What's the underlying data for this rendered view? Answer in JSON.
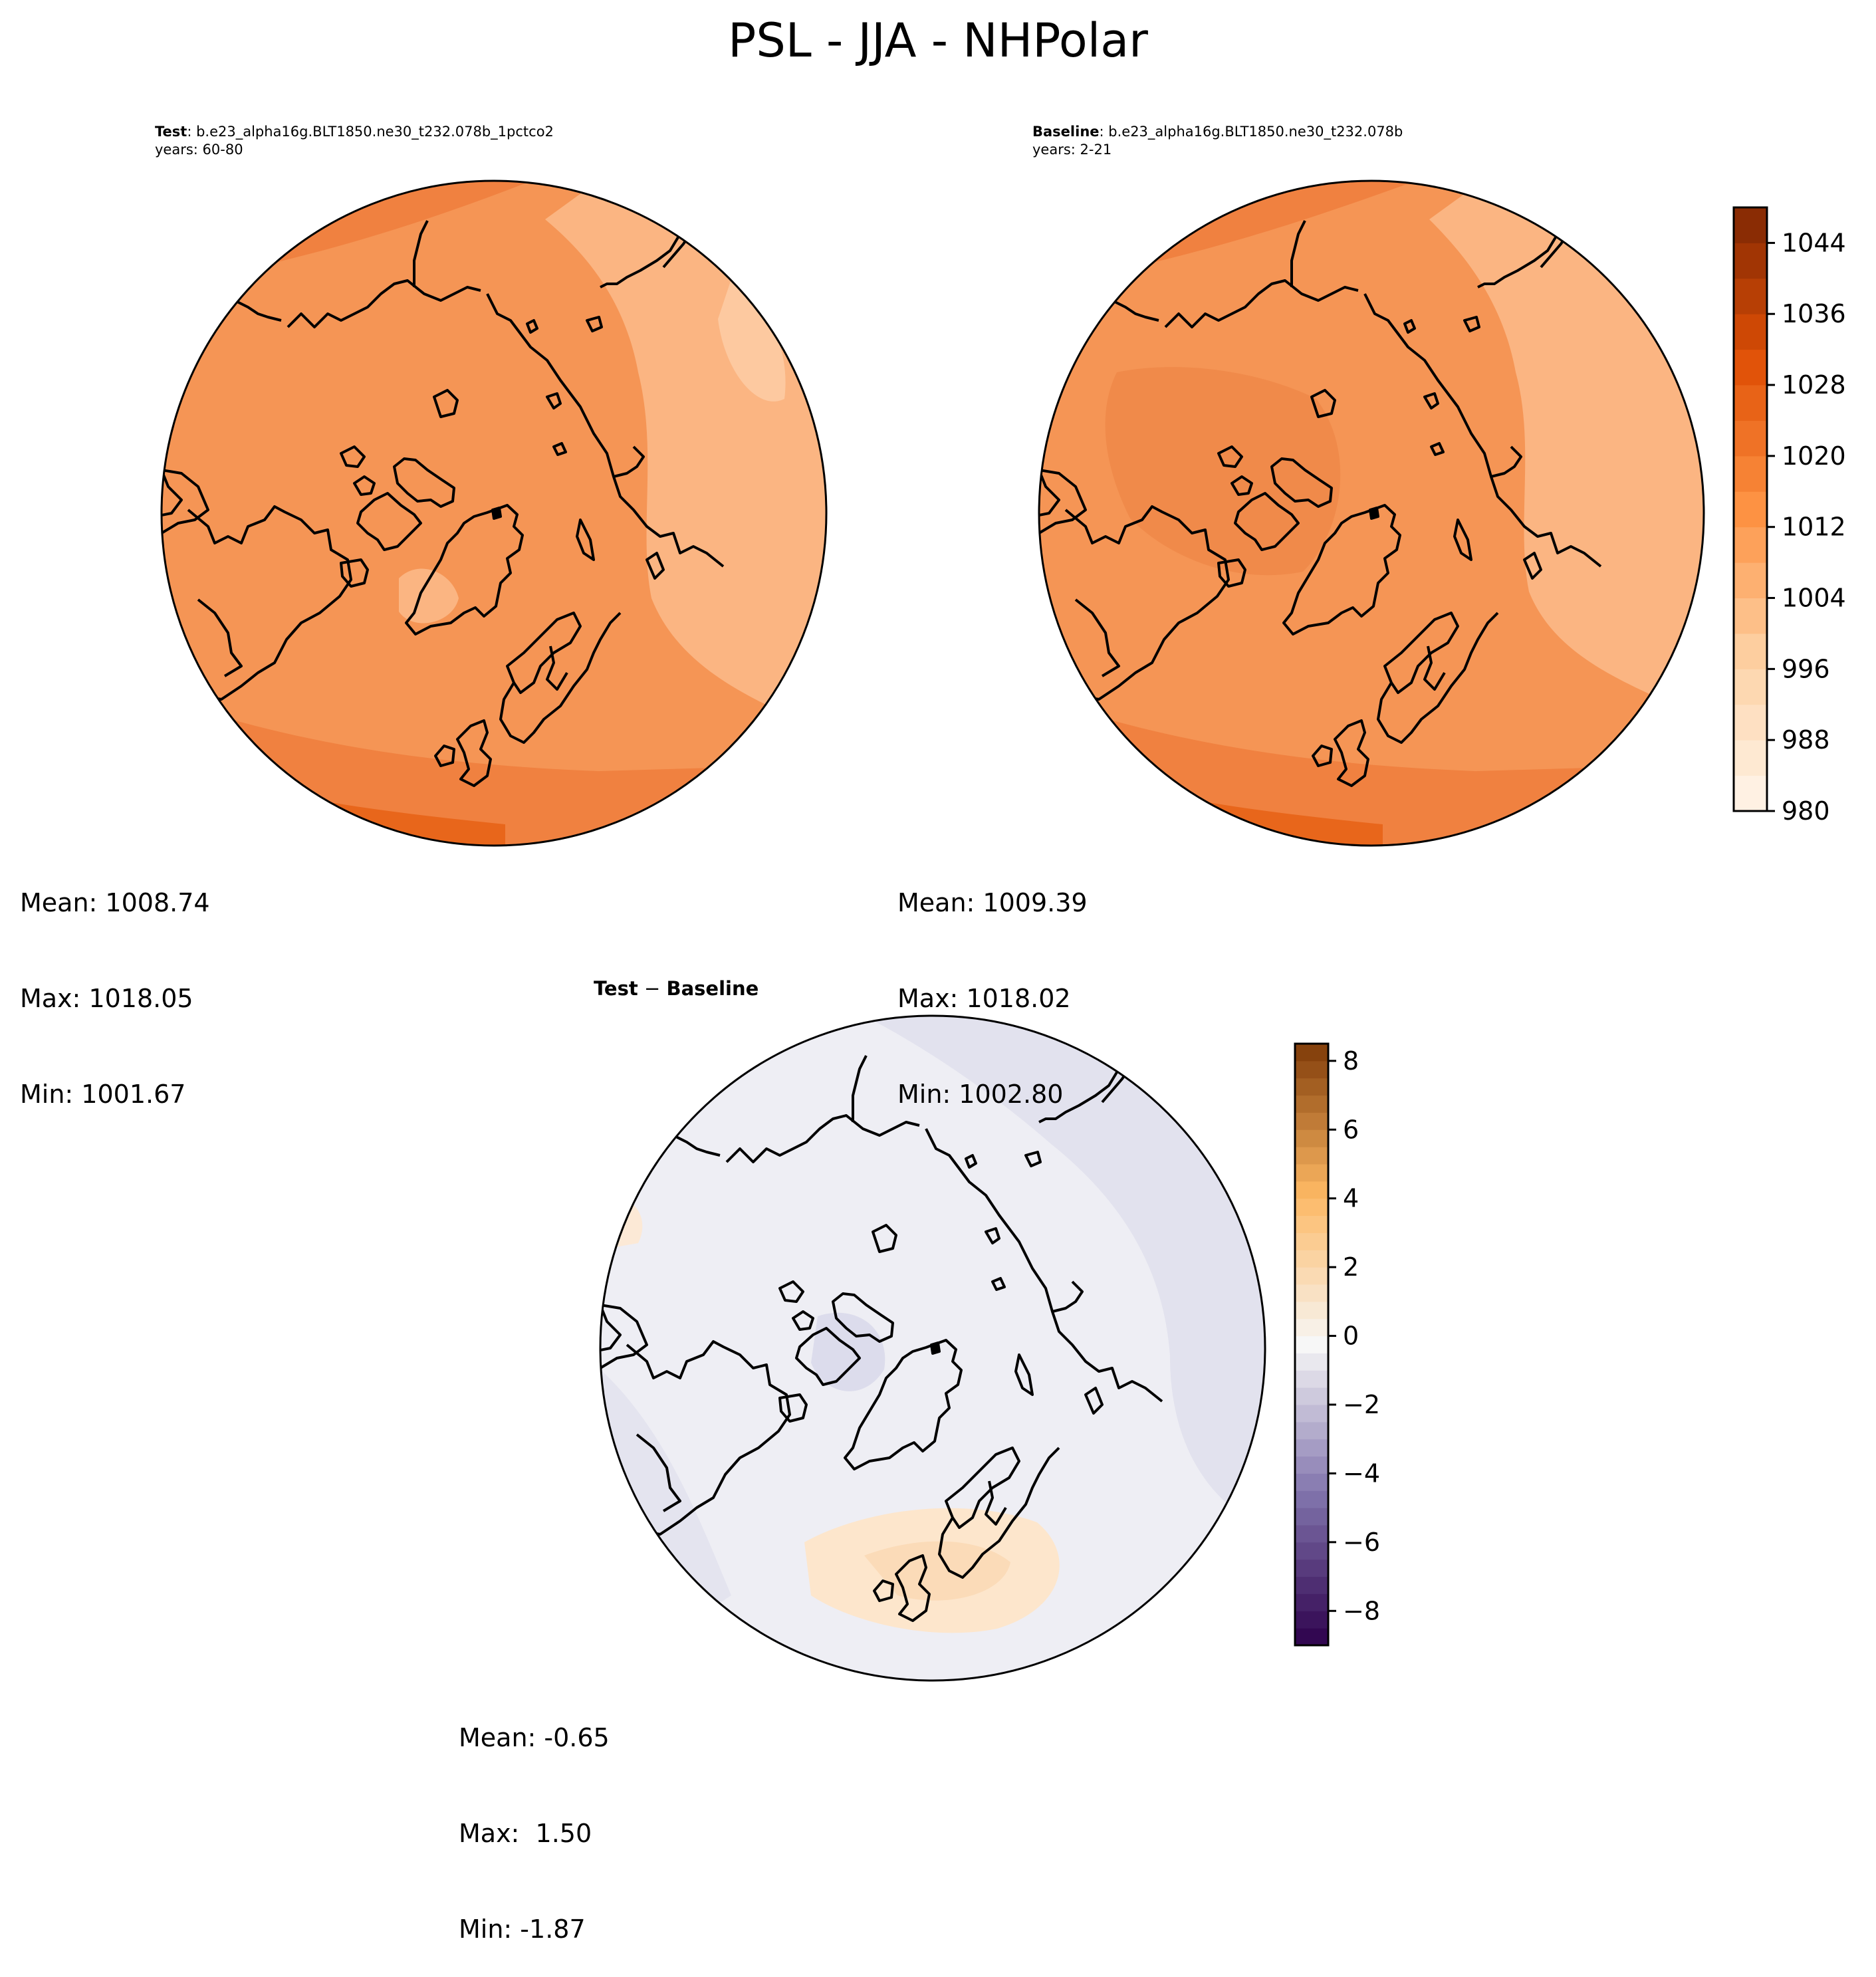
{
  "figure": {
    "title": "PSL - JJA - NHPolar"
  },
  "panels": {
    "test": {
      "label": "Test",
      "case": ": b.e23_alpha16g.BLT1850.ne30_t232.078b_1pctco2",
      "years": "years: 60-80",
      "mean": "Mean: 1008.74",
      "max": "Max: 1018.05",
      "min": "Min: 1001.67"
    },
    "baseline": {
      "label": "Baseline",
      "case": ": b.e23_alpha16g.BLT1850.ne30_t232.078b",
      "years": "years: 2-21",
      "mean": "Mean: 1009.39",
      "max": "Max: 1018.02",
      "min": "Min: 1002.80"
    },
    "diff": {
      "label_a": "Test",
      "op": " − ",
      "label_b": "Baseline",
      "mean": "Mean: -0.65",
      "max": "Max:  1.50",
      "min": "Min: -1.87"
    }
  },
  "colorbars": {
    "field": {
      "colormap": "Oranges",
      "min": 980,
      "max": 1048,
      "step": 4,
      "ticks": [
        "980",
        "988",
        "996",
        "1004",
        "1012",
        "1020",
        "1028",
        "1036",
        "1044"
      ],
      "tick_values": [
        980,
        988,
        996,
        1004,
        1012,
        1020,
        1028,
        1036,
        1044
      ]
    },
    "diff": {
      "colormap": "PuOr_r",
      "min": -9,
      "max": 8.5,
      "step": 0.5,
      "ticks": [
        "−8",
        "−6",
        "−4",
        "−2",
        "0",
        "2",
        "4",
        "6",
        "8"
      ],
      "tick_values": [
        -8,
        -6,
        -4,
        -2,
        0,
        2,
        4,
        6,
        8
      ]
    }
  },
  "colors": {
    "field_main": "#f59555",
    "field_light": "#fbb582",
    "field_dark": "#e8661b",
    "diff_neutral": "#eeeef4",
    "diff_negative": "#dcdcec",
    "diff_positive": "#fde6cc",
    "coastline": "#000000"
  }
}
